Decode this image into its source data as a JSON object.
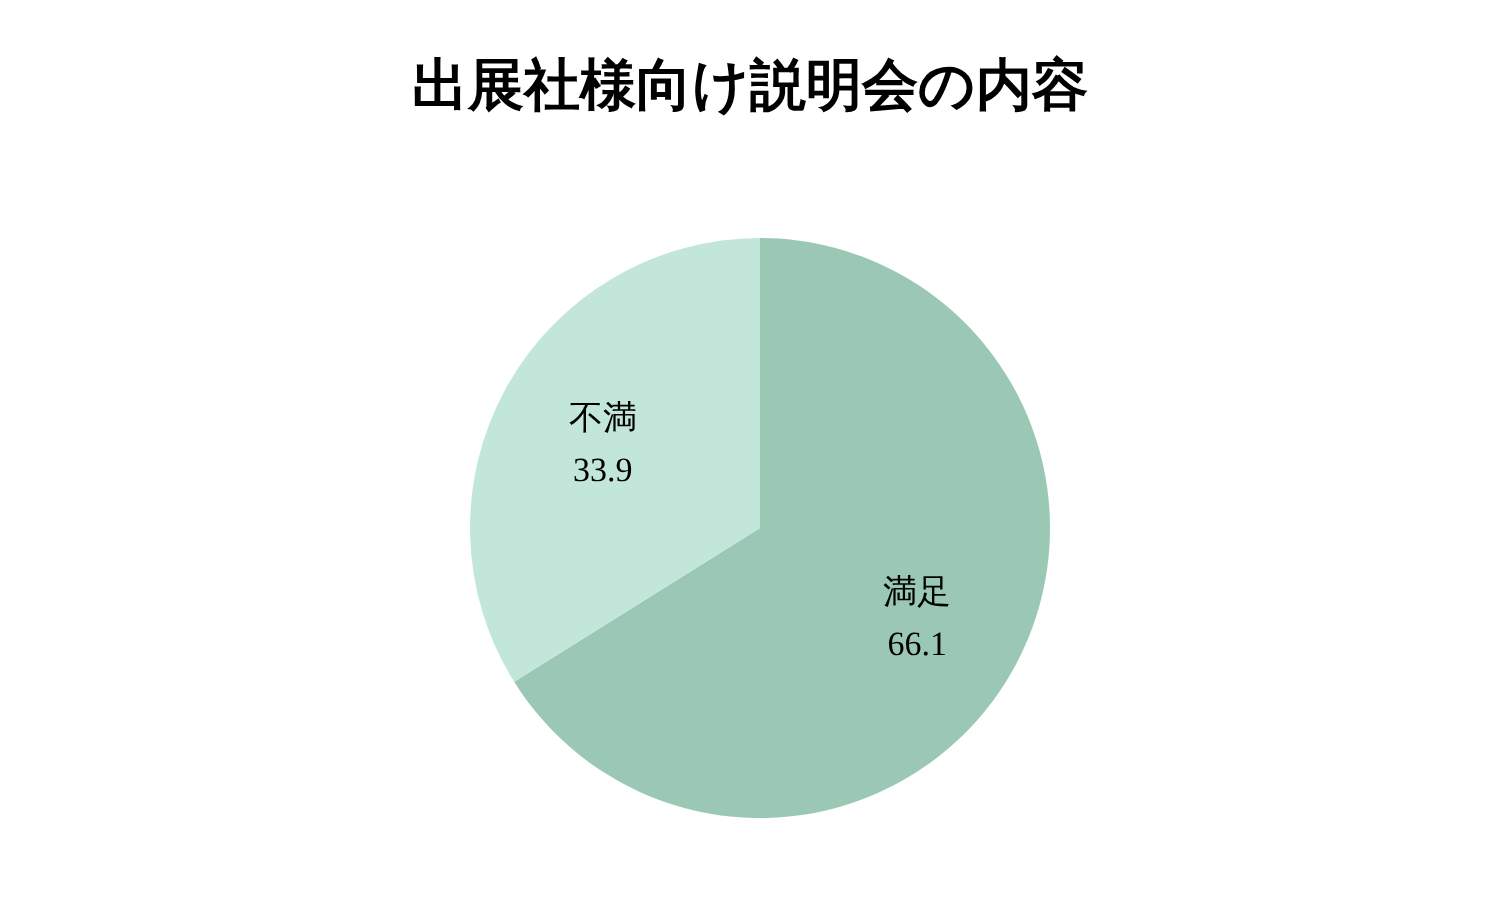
{
  "chart_data": {
    "type": "pie",
    "title": "出展社様向け説明会の内容",
    "categories": [
      "満足",
      "不満"
    ],
    "values": [
      66.1,
      33.9
    ],
    "colors": [
      "#9ac8b5",
      "#c3e6da"
    ],
    "data_labels": true
  }
}
